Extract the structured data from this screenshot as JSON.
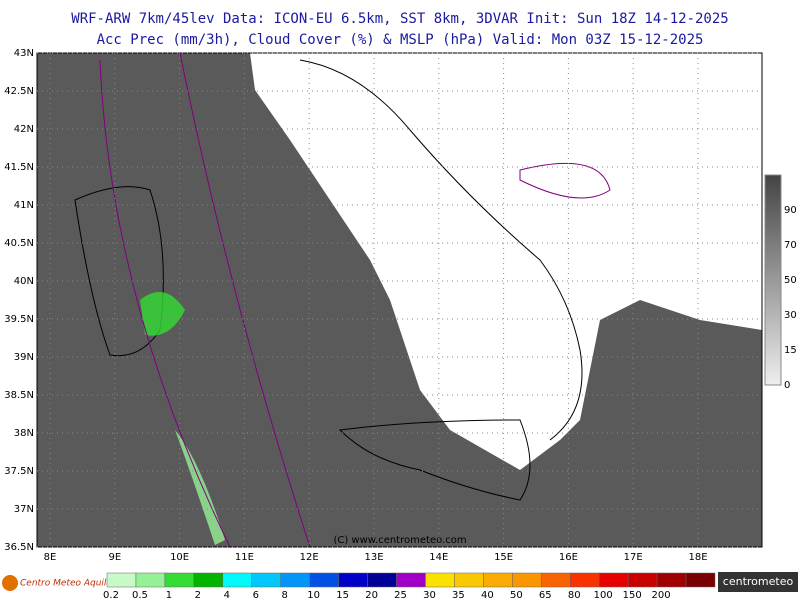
{
  "header": {
    "line1": "WRF-ARW 7km/45lev  Data: ICON-EU 6.5km, SST 8km, 3DVAR  Init: Sun 18Z 14-12-2025",
    "line2": "Acc Prec (mm/3h), Cloud Cover (%) & MSLP (hPa)  Valid: Mon 03Z 15-12-2025"
  },
  "map": {
    "lat_labels": [
      "43N",
      "42.5N",
      "42N",
      "41.5N",
      "41N",
      "40.5N",
      "40N",
      "39.5N",
      "39N",
      "38.5N",
      "38N",
      "37.5N",
      "37N",
      "36.5N"
    ],
    "lon_labels": [
      "8E",
      "9E",
      "10E",
      "11E",
      "12E",
      "13E",
      "14E",
      "15E",
      "16E",
      "17E",
      "18E"
    ],
    "credit": "(C) www.centrometeo.com"
  },
  "cloud_scale": {
    "labels": [
      "90",
      "70",
      "50",
      "30",
      "15",
      "0"
    ]
  },
  "precip_scale": {
    "labels": [
      "0.2",
      "0.5",
      "1",
      "2",
      "4",
      "6",
      "8",
      "10",
      "15",
      "20",
      "25",
      "30",
      "35",
      "40",
      "50",
      "65",
      "80",
      "100",
      "150",
      "200"
    ],
    "colors": [
      "#c8fac8",
      "#96f096",
      "#32dc32",
      "#00b400",
      "#00fafa",
      "#00c8fa",
      "#0096fa",
      "#0050e6",
      "#0000c8",
      "#000096",
      "#a000c8",
      "#fae100",
      "#fac800",
      "#faaa00",
      "#fa9600",
      "#fa6400",
      "#fa3200",
      "#e60000",
      "#c80000",
      "#a00000",
      "#780000"
    ]
  },
  "logos": {
    "left": "Centro Meteo Aquila",
    "right": "centrometeo"
  }
}
